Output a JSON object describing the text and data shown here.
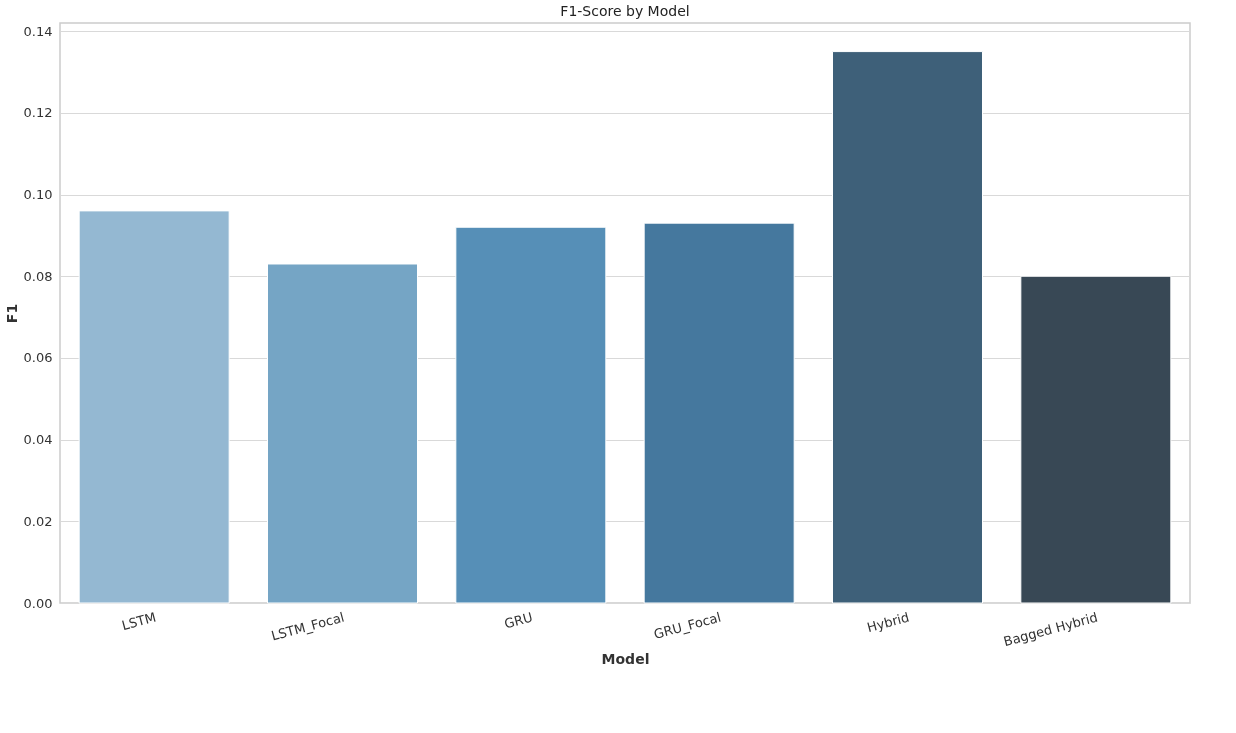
{
  "chart_data": {
    "type": "bar",
    "title": "F1-Score by Model",
    "xlabel": "Model",
    "ylabel": "F1",
    "categories": [
      "LSTM",
      "LSTM_Focal",
      "GRU",
      "GRU_Focal",
      "Hybrid",
      "Bagged Hybrid"
    ],
    "values": [
      0.096,
      0.083,
      0.092,
      0.093,
      0.135,
      0.08
    ],
    "colors": [
      "#94b8d2",
      "#75a5c5",
      "#568fb7",
      "#45789e",
      "#3e6079",
      "#384855"
    ],
    "ylim": [
      0,
      0.142
    ],
    "yticks": [
      {
        "value": 0,
        "label": "0.00"
      },
      {
        "value": 0.02,
        "label": "0.02"
      },
      {
        "value": 0.04,
        "label": "0.04"
      },
      {
        "value": 0.06,
        "label": "0.06"
      },
      {
        "value": 0.08,
        "label": "0.08"
      },
      {
        "value": 0.1,
        "label": "0.10"
      },
      {
        "value": 0.12,
        "label": "0.12"
      },
      {
        "value": 0.14,
        "label": "0.14"
      }
    ],
    "grid": "y"
  }
}
